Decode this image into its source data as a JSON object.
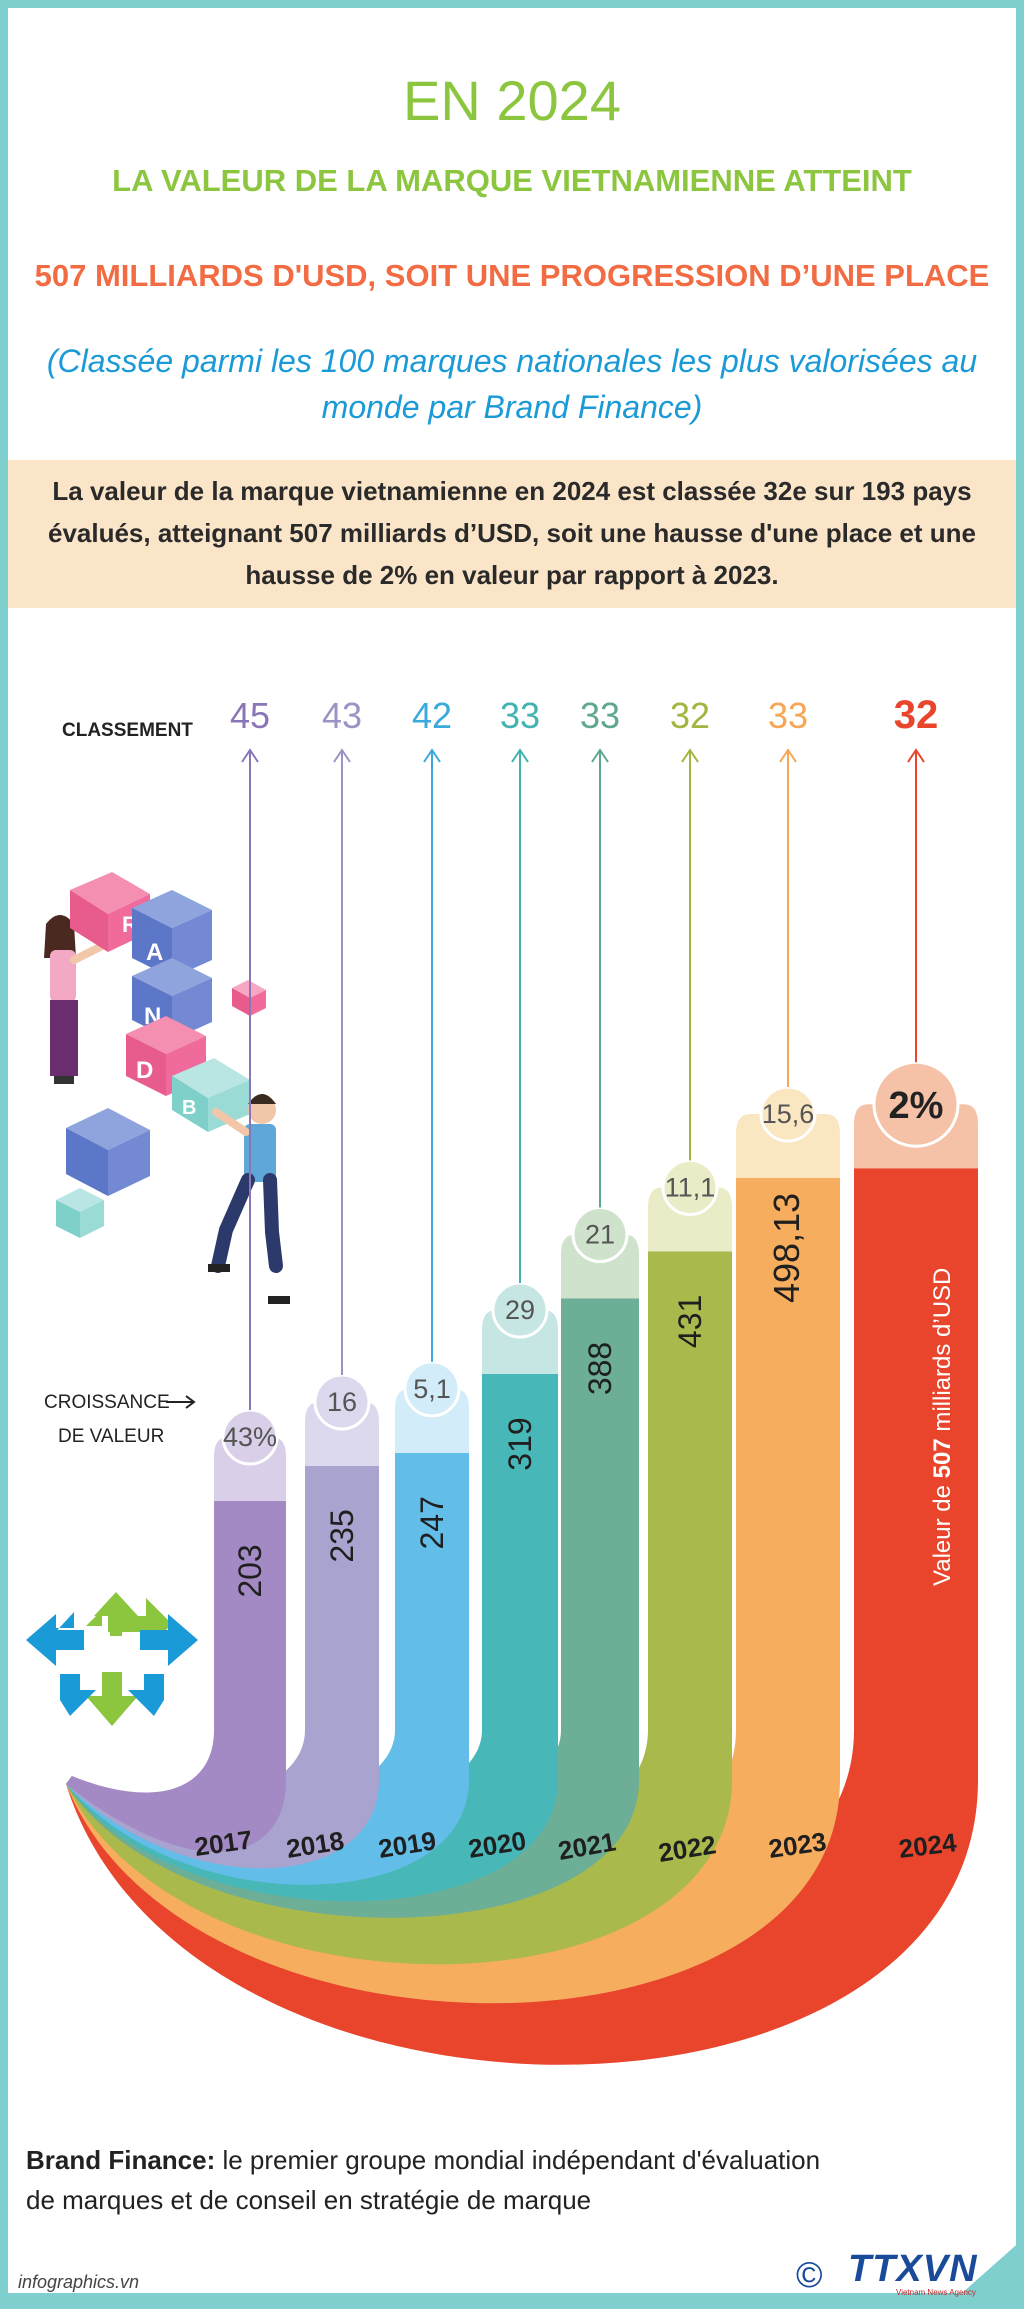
{
  "header": {
    "title": "EN 2024",
    "subtitle_1": "LA VALEUR DE LA MARQUE VIETNAMIENNE ATTEINT",
    "subtitle_2": "507 MILLIARDS D'USD,  SOIT UNE PROGRESSION D’UNE PLACE",
    "note": "(Classée parmi les 100 marques nationales les plus valorisées au monde par Brand Finance)"
  },
  "summary": "La valeur de la marque vietnamienne en 2024 est classée 32e sur 193 pays évalués, atteignant 507 milliards d’USD, soit une hausse d'une place et une hausse de 2% en valeur par rapport à 2023.",
  "labels": {
    "ranking": "CLASSEMENT",
    "growth_line1": "CROISSANCE",
    "growth_line2": "DE VALEUR",
    "value_2024_prefix": "Valeur de ",
    "value_2024_number": "507",
    "value_2024_suffix": " milliards d’USD"
  },
  "footer": {
    "source_bold": "Brand Finance:",
    "source_text": " le premier groupe mondial indépendant d'évaluation de marques et de conseil en stratégie de marque",
    "site": "infographics.vn",
    "copyright": "©",
    "logo": "TTXVN",
    "logo_sub": "Vietnam News Agency"
  },
  "colors": {
    "title_green": "#8cc63f",
    "subtitle_orange": "#f26b43",
    "note_blue": "#1a9ad6",
    "band": "#fbe5c8",
    "highlight": "#e8452c"
  },
  "chart_data": {
    "type": "bar",
    "categories": [
      "2017",
      "2018",
      "2019",
      "2020",
      "2021",
      "2022",
      "2023",
      "2024"
    ],
    "series": [
      {
        "name": "",
        "values": [
          203,
          235,
          247,
          319,
          388,
          431,
          498.13,
          507
        ],
        "labels": [
          "203",
          "235",
          "247",
          "319",
          "388",
          "431",
          "498,13",
          "507"
        ]
      }
    ],
    "ranking": [
      "45",
      "43",
      "42",
      "33",
      "33",
      "32",
      "33",
      "32"
    ],
    "growth": [
      "43%",
      "16",
      "5,1",
      "29",
      "21",
      "11,1",
      "15,6",
      "2%"
    ],
    "bar_colors": [
      "#a48ac4",
      "#a9a3cf",
      "#62bde8",
      "#47b7b8",
      "#6cae96",
      "#aab94b",
      "#f6ad5e",
      "#e8452c"
    ],
    "cap_colors": [
      "#d9cfe8",
      "#dcd9ee",
      "#d2ecf9",
      "#c6e6e4",
      "#cfe3cc",
      "#e9ecc6",
      "#fbe6c2",
      "#f5c2a8"
    ],
    "rank_colors": [
      "#8a76b6",
      "#9a93c4",
      "#3ba9dc",
      "#43b3b1",
      "#5fa78d",
      "#a3b43f",
      "#f6a654",
      "#e8452c"
    ]
  }
}
